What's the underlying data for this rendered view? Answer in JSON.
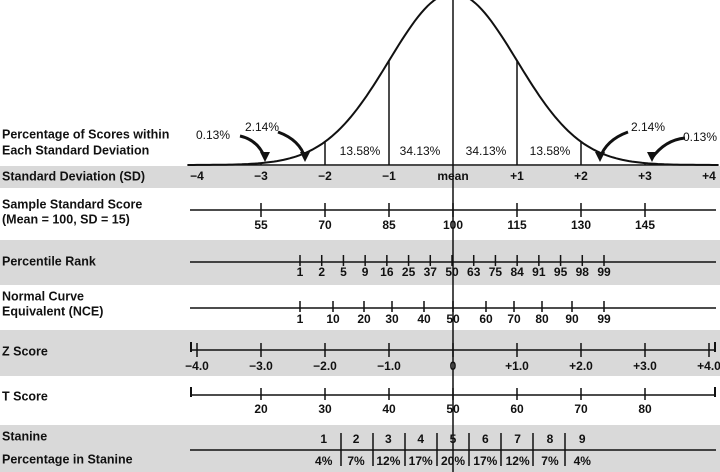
{
  "curve": {
    "label_lines": [
      "Percentage of Scores within",
      "Each Standard Deviation"
    ],
    "percentages": [
      "0.13%",
      "2.14%",
      "13.58%",
      "34.13%",
      "34.13%",
      "13.58%",
      "2.14%",
      "0.13%"
    ]
  },
  "rows": [
    {
      "label_lines": [
        "Standard Deviation (SD)"
      ],
      "ticks": [
        "−4",
        "−3",
        "−2",
        "−1",
        "mean",
        "+1",
        "+2",
        "+3",
        "+4"
      ]
    },
    {
      "label_lines": [
        "Sample Standard Score",
        "(Mean = 100, SD = 15)"
      ],
      "ticks": [
        "55",
        "70",
        "85",
        "100",
        "115",
        "130",
        "145"
      ]
    },
    {
      "label_lines": [
        "Percentile Rank"
      ],
      "ticks": [
        "1",
        "2",
        "5",
        "9",
        "16",
        "25",
        "37",
        "50",
        "63",
        "75",
        "84",
        "91",
        "95",
        "98",
        "99"
      ]
    },
    {
      "label_lines": [
        "Normal Curve",
        "Equivalent (NCE)"
      ],
      "ticks": [
        "1",
        "10",
        "20",
        "30",
        "40",
        "50",
        "60",
        "70",
        "80",
        "90",
        "99"
      ]
    },
    {
      "label_lines": [
        "Z Score"
      ],
      "ticks": [
        "−4.0",
        "−3.0",
        "−2.0",
        "−1.0",
        "0",
        "+1.0",
        "+2.0",
        "+3.0",
        "+4.0"
      ]
    },
    {
      "label_lines": [
        "T Score"
      ],
      "ticks": [
        "20",
        "30",
        "40",
        "50",
        "60",
        "70",
        "80"
      ]
    }
  ],
  "stanine": {
    "label_lines": [
      "Stanine",
      "Percentage in Stanine"
    ],
    "stanines": [
      "1",
      "2",
      "3",
      "4",
      "5",
      "6",
      "7",
      "8",
      "9"
    ],
    "percentages": [
      "4%",
      "7%",
      "12%",
      "17%",
      "20%",
      "17%",
      "12%",
      "7%",
      "4%"
    ]
  }
}
